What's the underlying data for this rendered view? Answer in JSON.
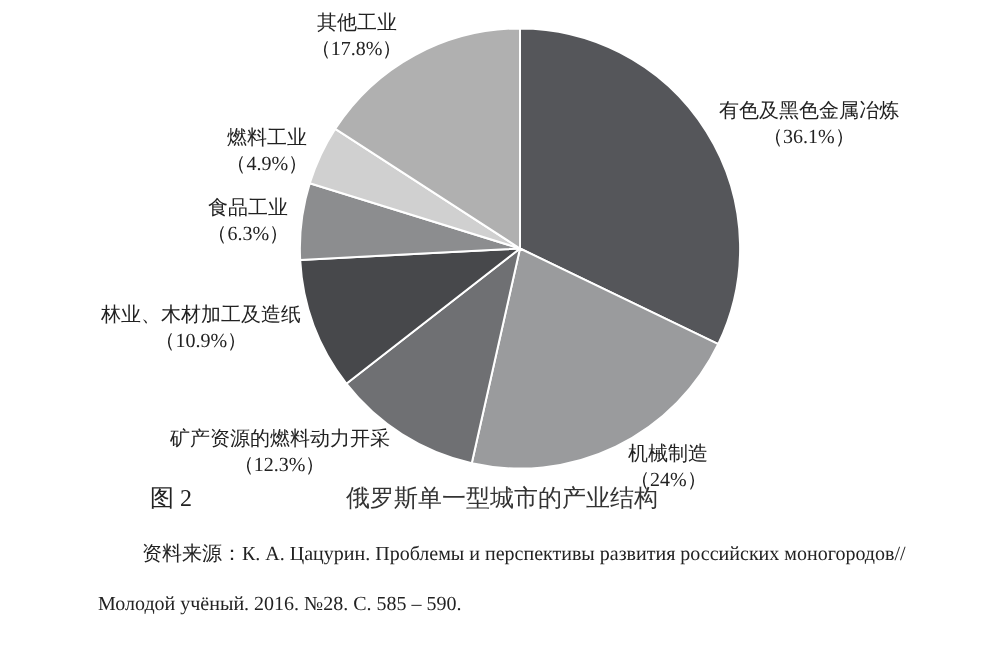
{
  "chart_data": {
    "type": "pie",
    "title": "俄罗斯单一型城市的产业结构",
    "categories": [
      "有色及黑色金属冶炼",
      "机械制造",
      "矿产资源的燃料动力开采",
      "林业、木材加工及造纸",
      "食品工业",
      "燃料工业",
      "其他工业"
    ],
    "values": [
      36.1,
      24,
      12.3,
      10.9,
      6.3,
      4.9,
      17.8
    ],
    "value_labels": [
      "（36.1%）",
      "（24%）",
      "（12.3%）",
      "（10.9%）",
      "（6.3%）",
      "（4.9%）",
      "（17.8%）"
    ],
    "colors": [
      "#55565a",
      "#9a9b9d",
      "#6f7073",
      "#47484b",
      "#8c8d8f",
      "#d0d0d0",
      "#b0b0b0"
    ],
    "annotations": [
      "图 2",
      "资料来源：К. А. Цацурин. Проблемы и перспективы развития российских моногородов//",
      "Молодой учёный. 2016. №28. С. 585 – 590."
    ]
  }
}
